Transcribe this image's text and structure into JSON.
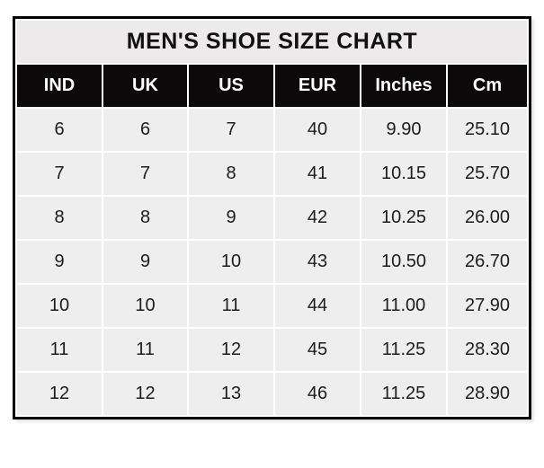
{
  "chart_data": {
    "type": "table",
    "title": "MEN'S SHOE SIZE CHART",
    "columns": [
      "IND",
      "UK",
      "US",
      "EUR",
      "Inches",
      "Cm"
    ],
    "rows": [
      [
        "6",
        "6",
        "7",
        "40",
        "9.90",
        "25.10"
      ],
      [
        "7",
        "7",
        "8",
        "41",
        "10.15",
        "25.70"
      ],
      [
        "8",
        "8",
        "9",
        "42",
        "10.25",
        "26.00"
      ],
      [
        "9",
        "9",
        "10",
        "43",
        "10.50",
        "26.70"
      ],
      [
        "10",
        "10",
        "11",
        "44",
        "11.00",
        "27.90"
      ],
      [
        "11",
        "11",
        "12",
        "45",
        "11.25",
        "28.30"
      ],
      [
        "12",
        "12",
        "13",
        "46",
        "11.25",
        "28.90"
      ]
    ]
  },
  "colors": {
    "header_bg": "#0c090b",
    "header_text": "#ffffff",
    "cell_bg": "#efeeee",
    "title_bg": "#eceaea",
    "grid": "#ffffff",
    "border": "#000000",
    "text": "#1c1c1c"
  }
}
